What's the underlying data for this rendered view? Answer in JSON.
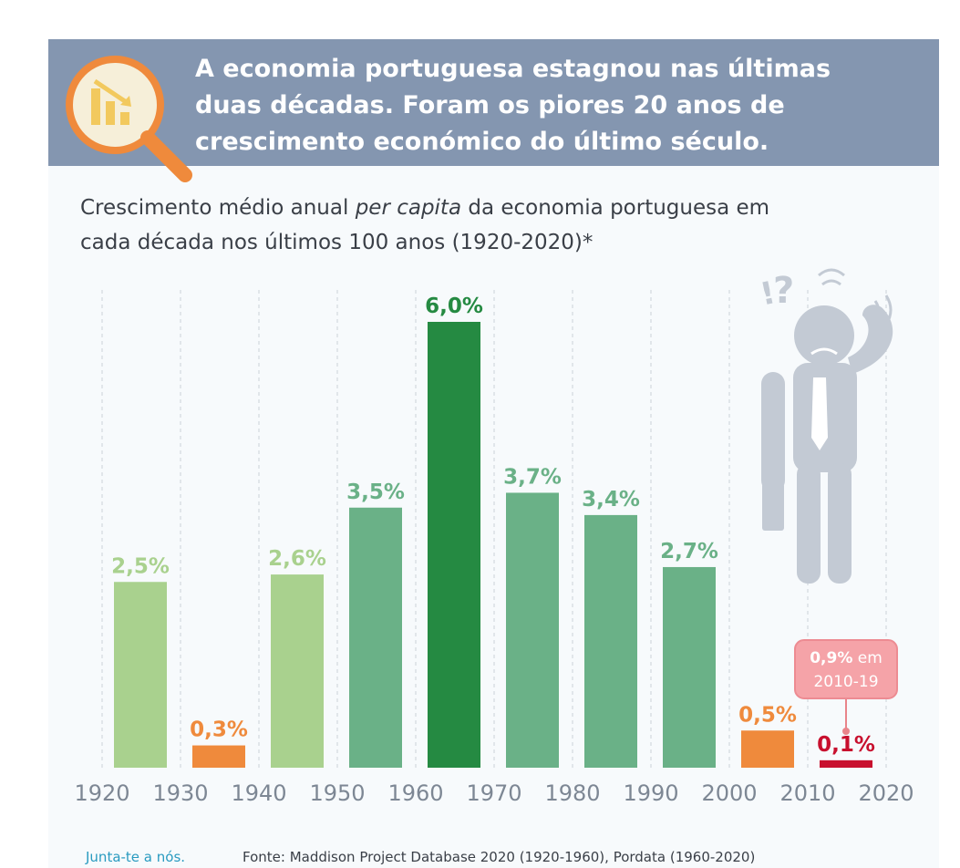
{
  "header": {
    "title_line1": "A economia portuguesa estagnou nas últimas",
    "title_line2": "duas décadas. Foram os piores 20 anos de",
    "title_line3": "crescimento económico do último século."
  },
  "subtitle": {
    "line1_pre": "Crescimento médio anual ",
    "line1_italic": "per capita",
    "line1_post": " da economia portuguesa em",
    "line2": "cada década nos últimos 100 anos (1920-2020)*"
  },
  "chart_data": {
    "type": "bar",
    "title": "Crescimento médio anual per capita da economia portuguesa em cada década nos últimos 100 anos (1920-2020)*",
    "x_ticks": [
      "1920",
      "1930",
      "1940",
      "1950",
      "1960",
      "1970",
      "1980",
      "1990",
      "2000",
      "2010",
      "2020"
    ],
    "categories": [
      "1920-1930",
      "1930-1940",
      "1940-1950",
      "1950-1960",
      "1960-1970",
      "1970-1980",
      "1980-1990",
      "1990-2000",
      "2000-2010",
      "2010-2020"
    ],
    "values": [
      2.5,
      0.3,
      2.6,
      3.5,
      6.0,
      3.7,
      3.4,
      2.7,
      0.5,
      0.1
    ],
    "labels": [
      "2,5%",
      "0,3%",
      "2,6%",
      "3,5%",
      "6,0%",
      "3,7%",
      "3,4%",
      "2,7%",
      "0,5%",
      "0,1%"
    ],
    "colors": [
      "#a9d18e",
      "#ef8a3c",
      "#a9d18e",
      "#6ab187",
      "#258a42",
      "#6ab187",
      "#6ab187",
      "#6ab187",
      "#ef8a3c",
      "#c8102e"
    ],
    "label_colors": [
      "#a9d18e",
      "#ef8a3c",
      "#a9d18e",
      "#6ab187",
      "#258a42",
      "#6ab187",
      "#6ab187",
      "#6ab187",
      "#ef8a3c",
      "#c8102e"
    ],
    "ylim": [
      0,
      6.0
    ],
    "grid": "vertical dashed",
    "annotation": {
      "value": "0,9%",
      "suffix": " em",
      "period": "2010-19",
      "bar_index": 9
    }
  },
  "footer": {
    "join": "Junta-te a nós.",
    "source": "Fonte: Maddison Project Database 2020 (1920-1960), Pordata (1960-2020)"
  },
  "icons": [
    "magnifier-chart-icon",
    "worried-businessman-icon"
  ],
  "colors": {
    "banner": "#8496b0",
    "accent_orange": "#ef8a3c",
    "highlight_red": "#c8102e"
  }
}
